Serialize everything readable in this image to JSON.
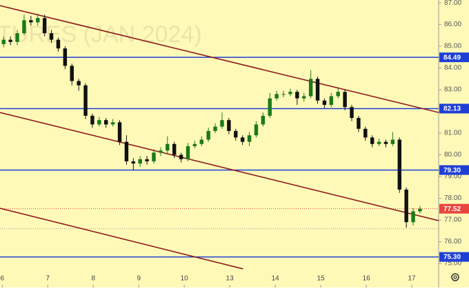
{
  "chart_data": {
    "type": "candlestick",
    "watermark": "TURES (JAN 2024)",
    "up_color": "#1b7a1b",
    "down_color": "#111111",
    "background": "#fff9b8",
    "x": [
      0.03,
      0.18,
      0.33,
      0.48,
      0.63,
      0.78,
      0.93,
      1.08,
      1.23,
      1.38,
      1.53,
      1.68,
      1.83,
      1.98,
      2.13,
      2.28,
      2.43,
      2.58,
      2.73,
      2.88,
      3.03,
      3.18,
      3.33,
      3.48,
      3.63,
      3.78,
      3.93,
      4.08,
      4.23,
      4.38,
      4.53,
      4.68,
      4.83,
      4.98,
      5.13,
      5.28,
      5.43,
      5.58,
      5.73,
      5.88,
      6.03,
      6.18,
      6.33,
      6.48,
      6.63,
      6.78,
      6.93,
      7.08,
      7.23,
      7.38,
      7.53,
      7.68,
      7.83,
      7.98,
      8.13,
      8.28,
      8.43,
      8.58,
      8.73,
      8.88,
      9.03,
      9.18
    ],
    "open": [
      85.1,
      85.3,
      85.2,
      85.6,
      86.2,
      86.1,
      86.3,
      85.6,
      85.3,
      84.9,
      84.1,
      83.4,
      83.2,
      81.8,
      81.4,
      81.6,
      81.4,
      81.5,
      80.6,
      79.7,
      79.6,
      79.8,
      79.7,
      80.1,
      80.2,
      80.5,
      80.0,
      79.8,
      80.4,
      80.5,
      80.7,
      81.1,
      81.3,
      81.6,
      81.1,
      80.8,
      80.6,
      80.9,
      81.4,
      81.8,
      82.6,
      82.8,
      82.8,
      82.9,
      82.6,
      82.7,
      83.5,
      82.5,
      82.3,
      82.7,
      82.9,
      82.2,
      81.7,
      81.2,
      80.8,
      80.5,
      80.6,
      80.5,
      80.7,
      78.4,
      76.9,
      77.4
    ],
    "high": [
      85.45,
      85.45,
      85.75,
      86.45,
      86.4,
      86.5,
      86.45,
      85.75,
      85.4,
      85.0,
      84.2,
      83.5,
      83.3,
      81.9,
      81.75,
      81.7,
      81.65,
      81.6,
      80.9,
      79.85,
      79.95,
      79.95,
      80.25,
      80.35,
      80.85,
      80.6,
      80.1,
      80.55,
      80.65,
      80.85,
      81.25,
      81.45,
      81.95,
      81.7,
      81.2,
      80.9,
      81.05,
      81.55,
      81.95,
      82.85,
      82.95,
      82.95,
      83.05,
      83.0,
      82.85,
      83.9,
      83.6,
      82.6,
      82.85,
      83.05,
      83.0,
      82.3,
      81.8,
      81.3,
      80.9,
      80.75,
      80.7,
      81.05,
      80.8,
      78.5,
      77.55,
      77.65
    ],
    "low": [
      84.95,
      85.05,
      85.05,
      85.5,
      85.95,
      85.95,
      85.45,
      85.15,
      84.75,
      83.95,
      83.2,
      82.95,
      81.65,
      81.25,
      81.3,
      81.25,
      81.3,
      80.45,
      79.55,
      79.3,
      79.45,
      79.55,
      79.6,
      79.95,
      80.05,
      79.85,
      79.65,
      79.7,
      80.3,
      80.4,
      80.6,
      81.0,
      81.2,
      80.95,
      80.65,
      80.45,
      80.4,
      80.8,
      81.3,
      81.7,
      82.5,
      82.65,
      82.7,
      82.3,
      82.45,
      82.6,
      82.35,
      82.15,
      82.2,
      82.6,
      82.05,
      81.55,
      81.05,
      80.65,
      80.35,
      80.4,
      80.35,
      80.4,
      78.25,
      76.65,
      76.75,
      77.3
    ],
    "close": [
      85.3,
      85.2,
      85.6,
      86.2,
      86.1,
      86.3,
      85.6,
      85.3,
      84.9,
      84.1,
      83.4,
      83.2,
      81.8,
      81.4,
      81.6,
      81.4,
      81.5,
      80.6,
      79.7,
      79.6,
      79.8,
      79.7,
      80.1,
      80.2,
      80.5,
      80.0,
      79.8,
      80.4,
      80.5,
      80.7,
      81.1,
      81.3,
      81.6,
      81.1,
      80.8,
      80.6,
      80.9,
      81.4,
      81.8,
      82.6,
      82.8,
      82.8,
      82.9,
      82.6,
      82.7,
      83.5,
      82.5,
      82.3,
      82.7,
      82.9,
      82.2,
      81.7,
      81.2,
      80.8,
      80.5,
      80.6,
      80.5,
      80.7,
      78.4,
      76.9,
      77.4,
      77.52
    ],
    "xlim": [
      -0.05,
      9.59
    ],
    "ylim": [
      73.89,
      87.13
    ],
    "xticks": [
      {
        "value": 0,
        "label": "6"
      },
      {
        "value": 1,
        "label": "7"
      },
      {
        "value": 2,
        "label": "8"
      },
      {
        "value": 3,
        "label": "9"
      },
      {
        "value": 4,
        "label": "10"
      },
      {
        "value": 5,
        "label": "13"
      },
      {
        "value": 6,
        "label": "14"
      },
      {
        "value": 7,
        "label": "15"
      },
      {
        "value": 8,
        "label": "16"
      },
      {
        "value": 9,
        "label": "17"
      }
    ],
    "yticks": [
      {
        "value": 75,
        "label": "75.00"
      },
      {
        "value": 76,
        "label": "76.00"
      },
      {
        "value": 77,
        "label": "77.00"
      },
      {
        "value": 78,
        "label": "78.00"
      },
      {
        "value": 79,
        "label": "79.00"
      },
      {
        "value": 80,
        "label": "80.00"
      },
      {
        "value": 81,
        "label": "81.00"
      },
      {
        "value": 82,
        "label": "82.00"
      },
      {
        "value": 83,
        "label": "83.00"
      },
      {
        "value": 84,
        "label": "84.00"
      },
      {
        "value": 85,
        "label": "85.00"
      },
      {
        "value": 86,
        "label": "86.00"
      },
      {
        "value": 87,
        "label": "87.00"
      }
    ],
    "hlines": [
      84.49,
      82.13,
      {
        "value": 79.3,
        "label": "79.30"
      },
      {
        "value": 75.3,
        "label": "75.30"
      }
    ],
    "hline_color": "#1e3fd6",
    "trendlines": [
      [
        [
          -0.05,
          86.87
        ],
        [
          9.59,
          81.95
        ]
      ],
      [
        [
          -0.05,
          81.95
        ],
        [
          9.59,
          76.97
        ]
      ],
      [
        [
          -0.05,
          77.54
        ],
        [
          5.29,
          74.75
        ]
      ]
    ],
    "trendline_color": "#8b1a1a",
    "dotted_level": 76.6,
    "last_price": 77.52,
    "last_price_color": "#e8463c"
  }
}
